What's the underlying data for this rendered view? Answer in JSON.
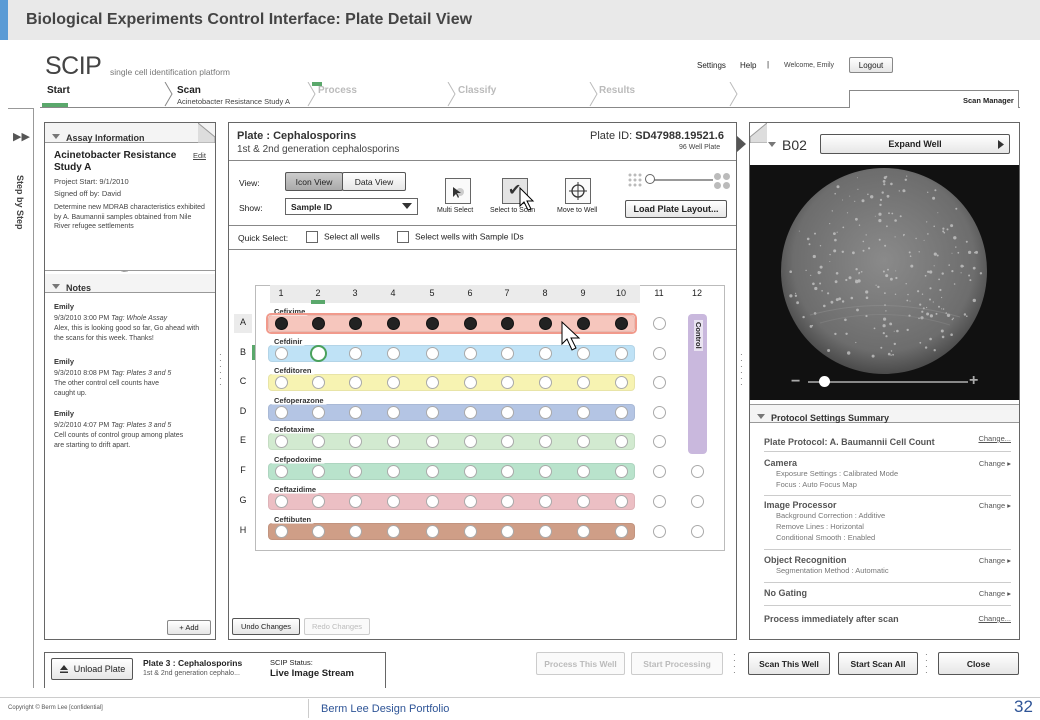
{
  "slide": {
    "title": "Biological Experiments Control Interface: Plate Detail View",
    "page_number": "32",
    "copyright": "Copyright © Berm Lee [confidential]",
    "portfolio": "Berm Lee Design Portfolio"
  },
  "app": {
    "logo": "SCIP",
    "tagline": "single cell identification platform"
  },
  "topnav": {
    "settings": "Settings",
    "help": "Help",
    "divider": "|",
    "welcome": "Welcome, Emily",
    "logout": "Logout"
  },
  "steps": [
    {
      "label": "Start",
      "sub": "",
      "state": "done"
    },
    {
      "label": "Scan",
      "sub": "Acinetobacter Resistance Study A",
      "state": "active"
    },
    {
      "label": "Process",
      "sub": "",
      "state": "todo"
    },
    {
      "label": "Classify",
      "sub": "",
      "state": "todo"
    },
    {
      "label": "Results",
      "sub": "",
      "state": "todo"
    }
  ],
  "scan_manager": "Scan Manager",
  "step_by_step": "Step by Step",
  "assay": {
    "header": "Assay Information",
    "title": "Acinetobacter Resistance Study A",
    "edit": "Edit",
    "project_start": "Project Start: 9/1/2010",
    "signed_off": "Signed off by: David",
    "description": "Determine new MDRAB characteristics exhibited by A. Baumannii samples obtained from Nile River refugee settlements"
  },
  "notes": {
    "header": "Notes",
    "items": [
      {
        "author": "Emily",
        "time": "9/3/2010 3:00 PM",
        "tag_label": "Tag:",
        "tag": "Whole Assay",
        "text": "Alex, this is looking good so far, Go ahead with the scans for this week. Thanks!"
      },
      {
        "author": "Emily",
        "time": "9/3/2010 8:08 PM",
        "tag_label": "Tag:",
        "tag": "Plates 3 and 5",
        "text": "The other control cell counts have caught up."
      },
      {
        "author": "Emily",
        "time": "9/2/2010 4:07 PM",
        "tag_label": "Tag:",
        "tag": "Plates 3 and 5",
        "text": "Cell counts of control group among plates are starting to drift apart."
      }
    ],
    "add": "+ Add"
  },
  "plate": {
    "title": "Plate : Cephalosporins",
    "subtitle": "1st & 2nd generation cephalosporins",
    "id_label": "Plate ID:",
    "id": "SD47988.19521.6",
    "type": "96 Well Plate",
    "view_label": "View:",
    "icon_view": "Icon View",
    "data_view": "Data View",
    "show_label": "Show:",
    "show_value": "Sample ID",
    "multi_select": "Multi Select",
    "select_to_scan": "Select to Scan",
    "move_to_well": "Move to Well",
    "load_layout": "Load Plate Layout...",
    "quick_select": "Quick Select:",
    "select_all": "Select all wells",
    "select_sample": "Select wells with Sample IDs",
    "columns": [
      "1",
      "2",
      "3",
      "4",
      "5",
      "6",
      "7",
      "8",
      "9",
      "10",
      "11",
      "12"
    ],
    "rows": [
      "A",
      "B",
      "C",
      "D",
      "E",
      "F",
      "G",
      "H"
    ],
    "row_bands": [
      {
        "label": "Cefixime",
        "color": "#f6c6bd"
      },
      {
        "label": "Cefdinir",
        "color": "#bfe2f6"
      },
      {
        "label": "Cefditoren",
        "color": "#f7f3b2"
      },
      {
        "label": "Cefoperazone",
        "color": "#b4c5e4"
      },
      {
        "label": "Cefotaxime",
        "color": "#d2ead0"
      },
      {
        "label": "Cefpodoxime",
        "color": "#b9e3cc"
      },
      {
        "label": "Ceftazidime",
        "color": "#ecbfc4"
      },
      {
        "label": "Ceftibuten",
        "color": "#cf9e87"
      }
    ],
    "control_label": "Control",
    "control_color": "#c9b8dd",
    "undo": "Undo Changes",
    "redo": "Redo Changes"
  },
  "well_view": {
    "title": "B02",
    "expand": "Expand Well",
    "zoom_fraction": 0.1
  },
  "protocol": {
    "header": "Protocol Settings Summary",
    "plate_protocol": "Plate Protocol: A. Baumannii Cell Count",
    "change_link": "Change...",
    "change": "Change",
    "camera": {
      "title": "Camera",
      "lines": [
        "Exposure Settings :  Calibrated Mode",
        "Focus :  Auto Focus Map"
      ]
    },
    "image_processor": {
      "title": "Image Processor",
      "lines": [
        "Background Correction :  Additive",
        "Remove Lines :  Horizontal",
        "Conditional Smooth :  Enabled"
      ]
    },
    "object_recognition": {
      "title": "Object Recognition",
      "lines": [
        "Segmentation Method :  Automatic"
      ]
    },
    "no_gating": "No Gating",
    "process_after": "Process immediately after scan"
  },
  "footer": {
    "unload": "Unload Plate",
    "plate_line1": "Plate 3 : Cephalosporins",
    "plate_line2": "1st & 2nd generation cephalo...",
    "status_label": "SCIP Status:",
    "status": "Live Image Stream",
    "process_well": "Process This Well",
    "start_processing": "Start Processing",
    "scan_well": "Scan This Well",
    "start_scan_all": "Start Scan All",
    "close": "Close"
  }
}
